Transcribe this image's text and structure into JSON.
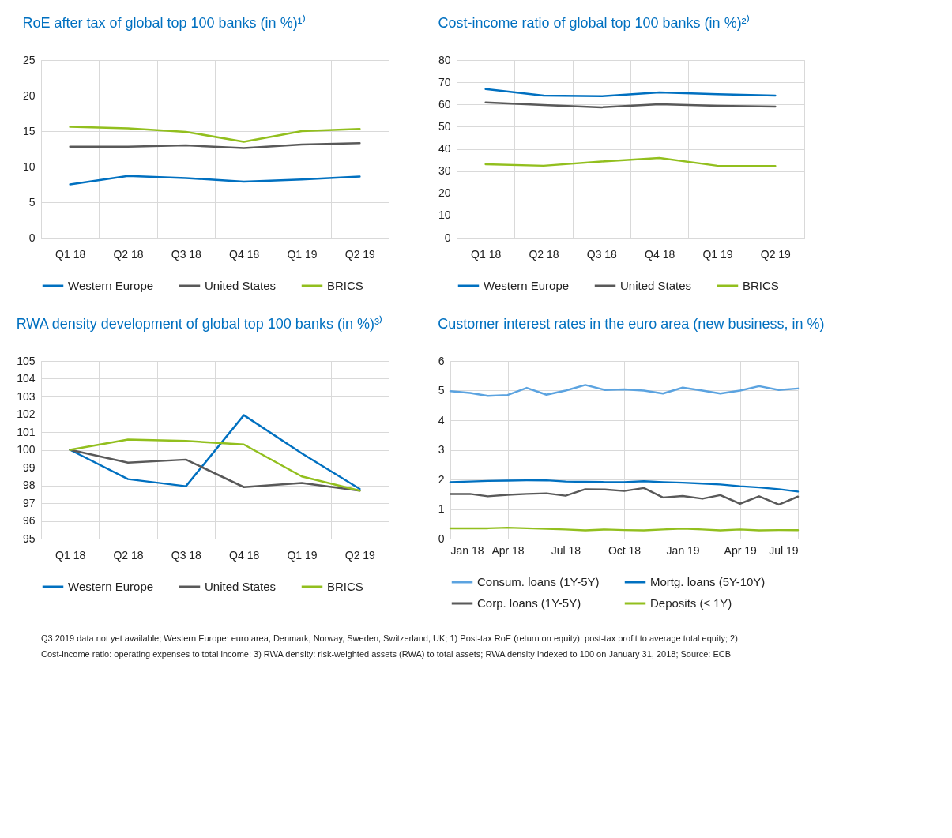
{
  "chart_data": [
    {
      "type": "line",
      "title": "RoE after tax of global top 100 banks (in %)¹⁾",
      "categories": [
        "Q1 18",
        "Q2 18",
        "Q3 18",
        "Q4 18",
        "Q1 19",
        "Q2 19"
      ],
      "ylim": [
        0,
        25
      ],
      "yticks": [
        0,
        5,
        10,
        15,
        20,
        25
      ],
      "grid": true,
      "legend": "bottom",
      "series": [
        {
          "name": "Western Europe",
          "color": "#0070c0",
          "values": [
            7.5,
            8.7,
            8.4,
            7.9,
            8.2,
            8.6
          ]
        },
        {
          "name": "United States",
          "color": "#595959",
          "values": [
            12.8,
            12.8,
            13.0,
            12.6,
            13.1,
            13.3
          ]
        },
        {
          "name": "BRICS",
          "color": "#92bf1e",
          "values": [
            15.6,
            15.4,
            14.9,
            13.5,
            15.0,
            15.3
          ]
        }
      ]
    },
    {
      "type": "line",
      "title": "Cost-income ratio of global top 100 banks (in %)²⁾",
      "categories": [
        "Q1 18",
        "Q2 18",
        "Q3 18",
        "Q4 18",
        "Q1 19",
        "Q2 19"
      ],
      "ylim": [
        0,
        80
      ],
      "yticks": [
        0,
        10,
        20,
        30,
        40,
        50,
        60,
        70,
        80
      ],
      "grid": true,
      "legend": "bottom",
      "series": [
        {
          "name": "Western Europe",
          "color": "#0070c0",
          "values": [
            66.9,
            64.0,
            63.7,
            65.4,
            64.6,
            64.0
          ]
        },
        {
          "name": "United States",
          "color": "#595959",
          "values": [
            60.9,
            59.7,
            58.7,
            60.1,
            59.4,
            59.0
          ]
        },
        {
          "name": "BRICS",
          "color": "#92bf1e",
          "values": [
            33.1,
            32.4,
            34.3,
            35.9,
            32.4,
            32.3
          ]
        }
      ]
    },
    {
      "type": "line",
      "title": "RWA density development of global top 100 banks (in %)³⁾",
      "categories": [
        "Q1 18",
        "Q2 18",
        "Q3 18",
        "Q4 18",
        "Q1 19",
        "Q2 19"
      ],
      "ylim": [
        95,
        105
      ],
      "yticks": [
        95,
        96,
        97,
        98,
        99,
        100,
        101,
        102,
        103,
        104,
        105
      ],
      "grid": true,
      "legend": "bottom",
      "series": [
        {
          "name": "Western Europe",
          "color": "#0070c0",
          "values": [
            100,
            98.35,
            97.95,
            101.95,
            99.8,
            97.8
          ]
        },
        {
          "name": "United States",
          "color": "#595959",
          "values": [
            100,
            99.28,
            99.45,
            97.9,
            98.13,
            97.7
          ]
        },
        {
          "name": "BRICS",
          "color": "#92bf1e",
          "values": [
            100,
            100.58,
            100.5,
            100.3,
            98.5,
            97.7
          ]
        }
      ]
    },
    {
      "type": "line",
      "title": "Customer interest rates in the euro area (new business, in %)",
      "x": [
        "2018-01",
        "2018-02",
        "2018-03",
        "2018-04",
        "2018-05",
        "2018-06",
        "2018-07",
        "2018-08",
        "2018-09",
        "2018-10",
        "2018-11",
        "2018-12",
        "2019-01",
        "2019-02",
        "2019-03",
        "2019-04",
        "2019-05",
        "2019-06",
        "2019-07"
      ],
      "xlim": [
        "2018-01",
        "2019-07"
      ],
      "xticks": [
        {
          "value": "2018-01",
          "label": "Jan 18"
        },
        {
          "value": "2018-04",
          "label": "Apr 18"
        },
        {
          "value": "2018-07",
          "label": "Jul 18"
        },
        {
          "value": "2018-10",
          "label": "Oct 18"
        },
        {
          "value": "2019-01",
          "label": "Jan 19"
        },
        {
          "value": "2019-04",
          "label": "Apr 19"
        },
        {
          "value": "2019-07",
          "label": "Jul 19"
        }
      ],
      "ylim": [
        0,
        6
      ],
      "yticks": [
        0,
        1,
        2,
        3,
        4,
        5,
        6
      ],
      "grid": true,
      "legend": "bottom",
      "series": [
        {
          "name": "Consum. loans (1Y-5Y)",
          "color": "#5ba3e0",
          "values": [
            4.98,
            4.92,
            4.82,
            4.85,
            5.09,
            4.86,
            5.0,
            5.19,
            5.02,
            5.04,
            5.0,
            4.9,
            5.1,
            5.0,
            4.9,
            5.0,
            5.15,
            5.02,
            5.07
          ]
        },
        {
          "name": "Mortg. loans (5Y-10Y)",
          "color": "#0070c0",
          "values": [
            1.91,
            1.93,
            1.95,
            1.96,
            1.97,
            1.97,
            1.93,
            1.92,
            1.91,
            1.91,
            1.94,
            1.91,
            1.89,
            1.86,
            1.83,
            1.77,
            1.73,
            1.67,
            1.59
          ]
        },
        {
          "name": "Corp. loans (1Y-5Y)",
          "color": "#595959",
          "values": [
            1.51,
            1.51,
            1.43,
            1.48,
            1.51,
            1.53,
            1.45,
            1.67,
            1.66,
            1.61,
            1.71,
            1.39,
            1.44,
            1.35,
            1.47,
            1.18,
            1.43,
            1.15,
            1.42
          ]
        },
        {
          "name": "Deposits (≤ 1Y)",
          "color": "#92bf1e",
          "values": [
            0.35,
            0.35,
            0.35,
            0.37,
            0.35,
            0.33,
            0.31,
            0.28,
            0.31,
            0.29,
            0.28,
            0.31,
            0.34,
            0.31,
            0.28,
            0.31,
            0.28,
            0.29,
            0.29
          ]
        }
      ],
      "annotations": [
        "Q3 2019 data not yet available; Western Europe: euro area, Denmark, Norway, Sweden, Switzerland, UK; 1) Post-tax RoE (return on equity): post-tax profit to average total equity; 2) Cost-income ratio: operating expenses to total income; 3) RWA density: risk-weighted assets (RWA) to total assets; RWA density indexed to 100 on January 31, 2018; Source: ECB"
      ]
    }
  ]
}
